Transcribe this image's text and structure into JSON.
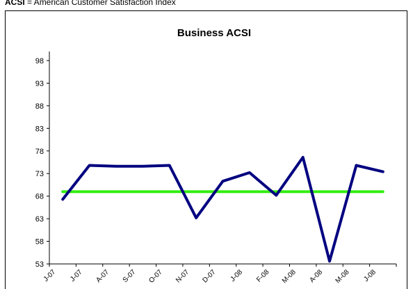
{
  "caption": {
    "abbr": "ACSI",
    "text": " = American Customer Satisfaction Index"
  },
  "chart_data": {
    "type": "line",
    "title": "Business ACSI",
    "xlabel": "",
    "ylabel": "",
    "ylim": [
      53,
      100
    ],
    "yticks": [
      53,
      58,
      63,
      68,
      73,
      78,
      83,
      88,
      93,
      98
    ],
    "categories": [
      "J-07",
      "J-07",
      "A-07",
      "S-07",
      "O-07",
      "N-07",
      "D-07",
      "J-08",
      "F-08",
      "M-08",
      "A-08",
      "M-08",
      "J-08"
    ],
    "series": [
      {
        "color": "#000080",
        "values": [
          67.3,
          74.8,
          74.6,
          74.6,
          74.8,
          63.2,
          71.3,
          73.2,
          68.2,
          76.6,
          53.6,
          74.8,
          73.4
        ]
      },
      {
        "color": "#33ee11",
        "values": [
          69.0,
          69.0,
          69.0,
          69.0,
          69.0,
          69.0,
          69.0,
          69.0,
          69.0,
          69.0,
          69.0,
          69.0,
          69.0
        ]
      }
    ],
    "grid": false,
    "legend": "none"
  }
}
